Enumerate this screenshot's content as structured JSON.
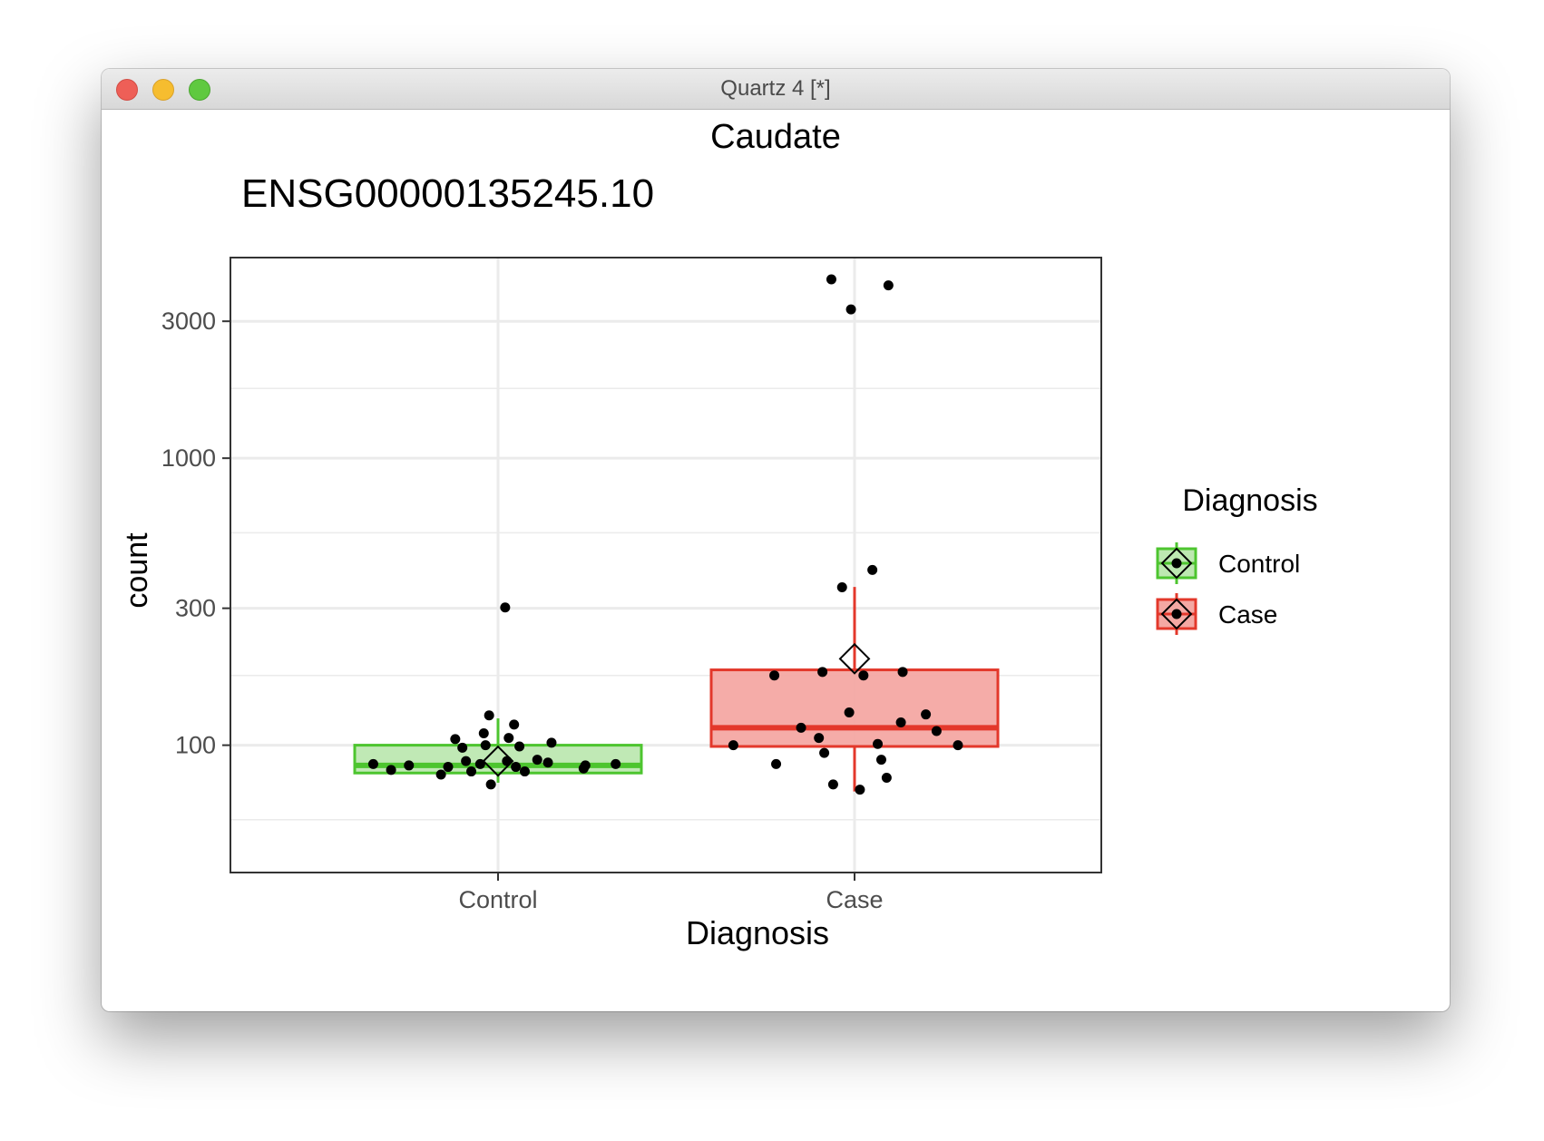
{
  "window": {
    "title": "Quartz 4 [*]"
  },
  "colors": {
    "control": "#4dc52f",
    "control_fill": "#bde8b1",
    "case": "#e3382b",
    "case_fill": "#f4a8a3",
    "grid": "#ebebeb",
    "text": "#4d4d4d"
  },
  "icons": {
    "close": "close-icon",
    "minimize": "minimize-icon",
    "maximize": "maximize-icon"
  },
  "chart_data": {
    "type": "box",
    "title": "Caudate",
    "subtitle": "ENSG00000135245.10",
    "xlabel": "Diagnosis",
    "ylabel": "count",
    "y_scale": "log10",
    "ylim": [
      36,
      5000
    ],
    "y_ticks": [
      100,
      300,
      1000,
      3000
    ],
    "y_tick_labels": [
      "100",
      "300",
      "1000",
      "3000"
    ],
    "y_minor_grid": [
      55,
      175,
      550,
      1750
    ],
    "grid": true,
    "categories": [
      "Control",
      "Case"
    ],
    "legend": {
      "title": "Diagnosis",
      "position": "right",
      "entries": [
        "Control",
        "Case"
      ]
    },
    "boxes": [
      {
        "name": "Control",
        "q1": 80,
        "median": 85,
        "q3": 100,
        "whisker_low": 74,
        "whisker_high": 124,
        "mean": 88
      },
      {
        "name": "Case",
        "q1": 99,
        "median": 115,
        "q3": 183,
        "whisker_low": 69,
        "whisker_high": 356,
        "mean": 200
      }
    ],
    "points": [
      {
        "group": "Control",
        "offsets": [
          -0.35,
          -0.3,
          -0.25,
          -0.16,
          -0.14,
          -0.12,
          -0.1,
          -0.09,
          -0.075,
          -0.05,
          -0.04,
          -0.035,
          -0.025,
          -0.02,
          0.02,
          0.025,
          0.03,
          0.045,
          0.05,
          0.06,
          0.075,
          0.11,
          0.14,
          0.15,
          0.24,
          0.245,
          0.33
        ],
        "values": [
          86,
          82,
          85,
          79,
          84,
          105,
          98,
          88,
          81,
          86,
          110,
          100,
          127,
          73,
          302,
          88,
          106,
          118,
          84,
          99,
          81,
          89,
          87,
          102,
          83,
          85,
          86
        ]
      },
      {
        "group": "Case",
        "offsets": [
          -0.34,
          -0.22,
          -0.225,
          -0.15,
          -0.1,
          -0.09,
          -0.085,
          -0.065,
          -0.06,
          -0.035,
          -0.015,
          -0.01,
          0.015,
          0.025,
          0.05,
          0.065,
          0.075,
          0.13,
          0.135,
          0.2,
          0.23,
          0.29,
          0.09
        ],
        "values": [
          100,
          86,
          175,
          115,
          106,
          180,
          94,
          4200,
          73,
          355,
          130,
          3300,
          70,
          175,
          408,
          101,
          89,
          120,
          180,
          128,
          112,
          100,
          77
        ]
      },
      {
        "group": "Case-extra",
        "offsets": [
          0.095
        ],
        "values": [
          4000
        ]
      }
    ]
  }
}
